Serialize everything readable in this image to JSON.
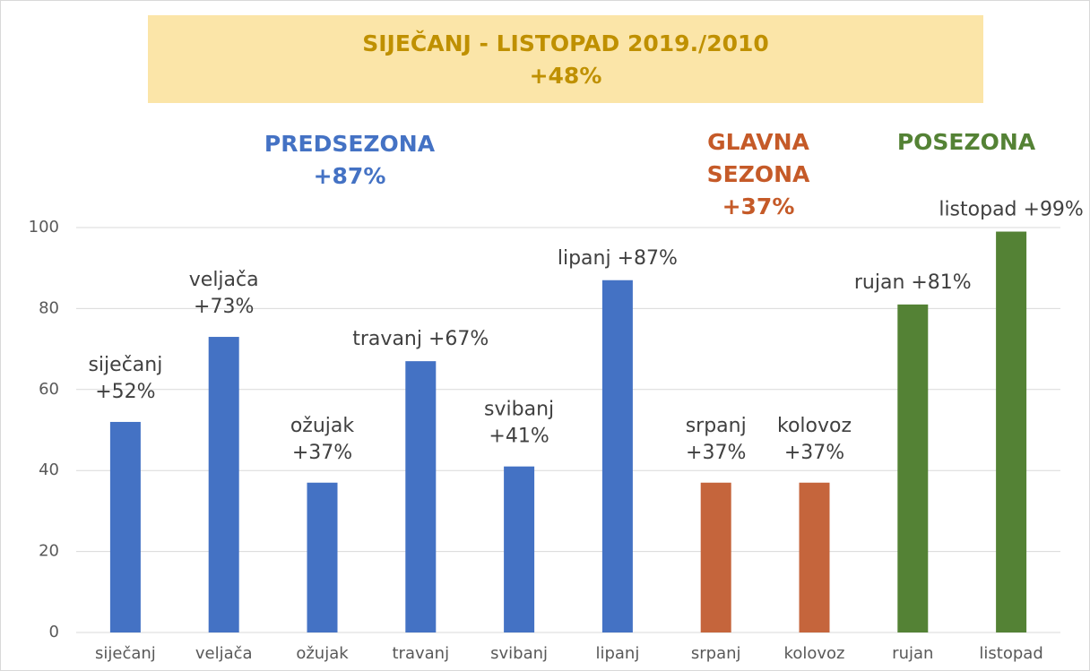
{
  "chart_data": {
    "type": "bar",
    "title": [
      "SIJEČANJ - LISTOPAD 2019./2010",
      "+48%"
    ],
    "annotations": [
      {
        "lines": [
          "PREDSEZONA",
          "+87%"
        ],
        "color": "#4472c4"
      },
      {
        "lines": [
          "GLAVNA",
          "SEZONA",
          "+37%"
        ],
        "color": "#c55a28"
      },
      {
        "lines": [
          "POSEZONA"
        ],
        "color": "#548235"
      }
    ],
    "categories": [
      "siječanj",
      "veljača",
      "ožujak",
      "travanj",
      "svibanj",
      "lipanj",
      "srpanj",
      "kolovoz",
      "rujan",
      "listopad"
    ],
    "values": [
      52,
      73,
      37,
      67,
      41,
      87,
      37,
      37,
      81,
      99
    ],
    "value_labels": [
      "siječanj +52%",
      "veljača +73%",
      "ožujak +37%",
      "travanj +67%",
      "svibanj +41%",
      "lipanj +87%",
      "srpanj +37%",
      "kolovoz +37%",
      "rujan +81%",
      "listopad +99%"
    ],
    "colors": [
      "#4472c4",
      "#4472c4",
      "#4472c4",
      "#4472c4",
      "#4472c4",
      "#4472c4",
      "#c5653c",
      "#c5653c",
      "#548235",
      "#548235"
    ],
    "ylim": [
      0,
      100
    ],
    "yticks": [
      0,
      20,
      40,
      60,
      80,
      100
    ],
    "grid": true
  }
}
